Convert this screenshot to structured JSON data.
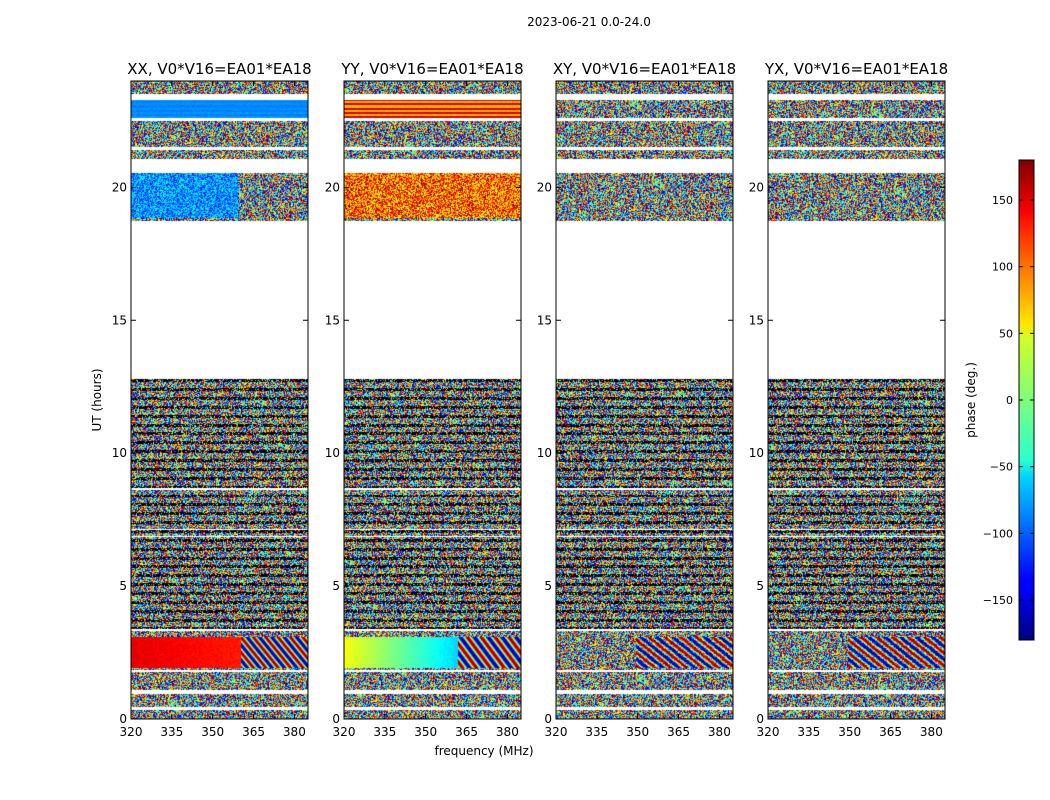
{
  "suptitle": "2023-06-21 0.0-24.0",
  "chart_data": {
    "type": "heatmap",
    "xlabel": "frequency (MHz)",
    "ylabel": "UT (hours)",
    "xlim": [
      320,
      385
    ],
    "ylim": [
      0,
      24
    ],
    "xticks": [
      320,
      335,
      350,
      365,
      380
    ],
    "yticks": [
      0,
      5,
      10,
      15,
      20
    ],
    "panels": [
      {
        "title": "XX, V0*V16=EA01*EA18",
        "scheme": "xx"
      },
      {
        "title": "YY, V0*V16=EA01*EA18",
        "scheme": "yy"
      },
      {
        "title": "XY, V0*V16=EA01*EA18",
        "scheme": "noise"
      },
      {
        "title": "YX, V0*V16=EA01*EA18",
        "scheme": "noise"
      }
    ],
    "flagged_ut_ranges": [
      [
        12.8,
        18.75
      ],
      [
        20.55,
        21.05
      ],
      [
        0.35,
        0.45
      ],
      [
        0.95,
        1.1
      ],
      [
        1.75,
        1.85
      ],
      [
        3.3,
        3.4
      ],
      [
        6.85,
        6.9
      ],
      [
        7.1,
        7.15
      ],
      [
        8.6,
        8.7
      ],
      [
        21.4,
        21.5
      ],
      [
        22.5,
        22.6
      ],
      [
        23.3,
        23.5
      ]
    ],
    "colorbar": {
      "label": "phase (deg.)",
      "range": [
        -180,
        180
      ],
      "ticks": [
        150,
        100,
        50,
        0,
        -50,
        -100,
        -150
      ],
      "colormap": "jet"
    }
  }
}
